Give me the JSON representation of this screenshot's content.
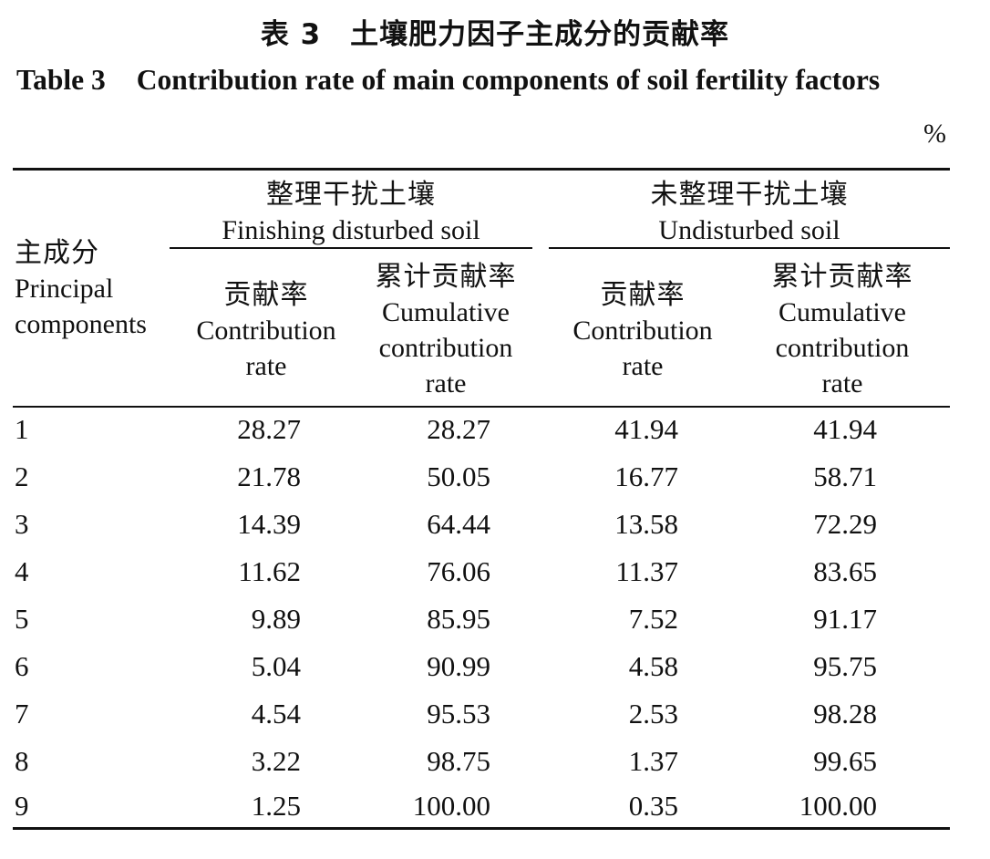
{
  "title": {
    "cn": "表 3　土壤肥力因子主成分的贡献率",
    "en_num": "Table 3",
    "en_text": "Contribution rate of main components of soil fertility factors"
  },
  "unit": "%",
  "header": {
    "pc": {
      "cn": "主成分",
      "en1": "Principal",
      "en2": "components"
    },
    "group1": {
      "cn": "整理干扰土壤",
      "en": "Finishing disturbed soil"
    },
    "group2": {
      "cn": "未整理干扰土壤",
      "en": "Undisturbed soil"
    },
    "contrib": {
      "cn": "贡献率",
      "en1": "Contribution",
      "en2": "rate"
    },
    "cumul": {
      "cn": "累计贡献率",
      "en1": "Cumulative",
      "en2": "contribution",
      "en3": "rate"
    }
  },
  "rows": [
    [
      "1",
      "28.27",
      "28.27",
      "41.94",
      "41.94"
    ],
    [
      "2",
      "21.78",
      "50.05",
      "16.77",
      "58.71"
    ],
    [
      "3",
      "14.39",
      "64.44",
      "13.58",
      "72.29"
    ],
    [
      "4",
      "11.62",
      "76.06",
      "11.37",
      "83.65"
    ],
    [
      "5",
      "9.89",
      "85.95",
      "7.52",
      "91.17"
    ],
    [
      "6",
      "5.04",
      "90.99",
      "4.58",
      "95.75"
    ],
    [
      "7",
      "4.54",
      "95.53",
      "2.53",
      "98.28"
    ],
    [
      "8",
      "3.22",
      "98.75",
      "1.37",
      "99.65"
    ],
    [
      "9",
      "1.25",
      "100.00",
      "0.35",
      "100.00"
    ]
  ]
}
